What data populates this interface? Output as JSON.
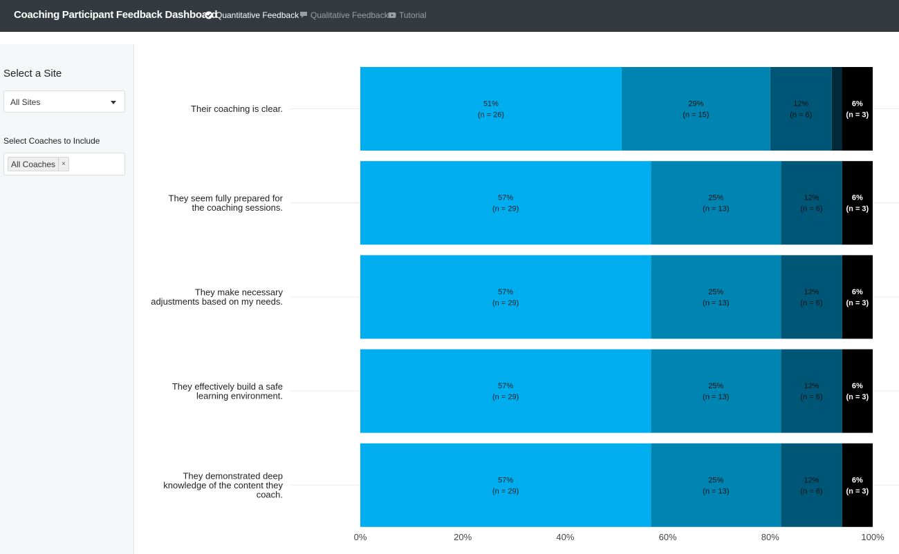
{
  "navbar": {
    "title": "Coaching Participant Feedback Dashboard",
    "tabs": [
      {
        "label": "Quantitative Feedback",
        "icon": "check-circle-icon",
        "active": true
      },
      {
        "label": "Qualitative Feedback",
        "icon": "comment-icon",
        "active": false
      },
      {
        "label": "Tutorial",
        "icon": "youtube-icon",
        "active": false
      }
    ]
  },
  "sidebar": {
    "site_label": "Select a Site",
    "site_value": "All Sites",
    "coaches_label": "Select Coaches to Include",
    "coaches_chip": "All Coaches",
    "chip_remove": "×"
  },
  "colors": {
    "segment_1": "#00aeef",
    "segment_2": "#0085b2",
    "segment_3": "#005677",
    "segment_4": "#00293a",
    "segment_5": "#000000",
    "navbar_bg": "#343a40"
  },
  "chart_data": {
    "type": "bar",
    "orientation": "horizontal",
    "stacked": true,
    "categories": [
      "Their coaching is clear.",
      "They seem fully prepared for the coaching sessions.",
      "They make necessary adjustments based on my needs.",
      "They effectively build a safe learning environment.",
      "They demonstrated deep knowledge of the content they coach."
    ],
    "category_lines": [
      [
        "Their coaching is clear."
      ],
      [
        "They seem fully prepared for",
        "the coaching sessions."
      ],
      [
        "They make necessary",
        "adjustments based on my needs."
      ],
      [
        "They effectively build a safe",
        "learning environment."
      ],
      [
        "They demonstrated deep",
        "knowledge of the content they",
        "coach."
      ]
    ],
    "rows": [
      {
        "segments": [
          {
            "value": 51,
            "label": "51%",
            "n": "(n = 26)"
          },
          {
            "value": 29,
            "label": "29%",
            "n": "(n = 15)"
          },
          {
            "value": 12,
            "label": "12%",
            "n": "(n = 6)"
          },
          {
            "value": 2,
            "label": "",
            "n": ""
          },
          {
            "value": 6,
            "label": "6%",
            "n": "(n = 3)"
          }
        ]
      },
      {
        "segments": [
          {
            "value": 57,
            "label": "57%",
            "n": "(n = 29)"
          },
          {
            "value": 25.5,
            "label": "25%",
            "n": "(n = 13)"
          },
          {
            "value": 12,
            "label": "12%",
            "n": "(n = 6)"
          },
          {
            "value": 0,
            "label": "",
            "n": ""
          },
          {
            "value": 6,
            "label": "6%",
            "n": "(n = 3)"
          }
        ]
      },
      {
        "segments": [
          {
            "value": 57,
            "label": "57%",
            "n": "(n = 29)"
          },
          {
            "value": 25.5,
            "label": "25%",
            "n": "(n = 13)"
          },
          {
            "value": 12,
            "label": "12%",
            "n": "(n = 6)"
          },
          {
            "value": 0,
            "label": "",
            "n": ""
          },
          {
            "value": 6,
            "label": "6%",
            "n": "(n = 3)"
          }
        ]
      },
      {
        "segments": [
          {
            "value": 57,
            "label": "57%",
            "n": "(n = 29)"
          },
          {
            "value": 25.5,
            "label": "25%",
            "n": "(n = 13)"
          },
          {
            "value": 12,
            "label": "12%",
            "n": "(n = 6)"
          },
          {
            "value": 0,
            "label": "",
            "n": ""
          },
          {
            "value": 6,
            "label": "6%",
            "n": "(n = 3)"
          }
        ]
      },
      {
        "segments": [
          {
            "value": 57,
            "label": "57%",
            "n": "(n = 29)"
          },
          {
            "value": 25.5,
            "label": "25%",
            "n": "(n = 13)"
          },
          {
            "value": 12,
            "label": "12%",
            "n": "(n = 6)"
          },
          {
            "value": 0,
            "label": "",
            "n": ""
          },
          {
            "value": 6,
            "label": "6%",
            "n": "(n = 3)"
          }
        ]
      }
    ],
    "xlim": [
      0,
      100
    ],
    "x_ticks": [
      0,
      20,
      40,
      60,
      80,
      100
    ],
    "x_tick_labels": [
      "0%",
      "20%",
      "40%",
      "60%",
      "80%",
      "100%"
    ],
    "title": "",
    "xlabel": "",
    "ylabel": "",
    "legend": "none",
    "grid": true
  }
}
